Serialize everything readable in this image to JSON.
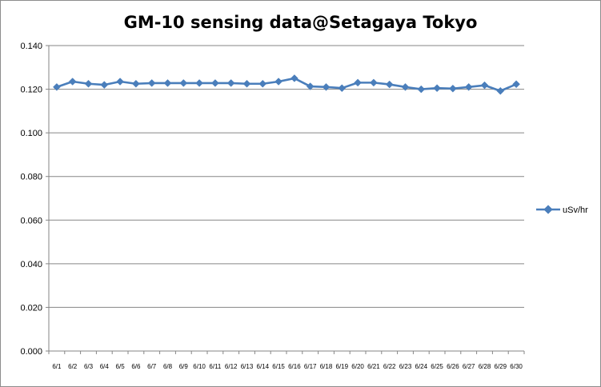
{
  "chart_data": {
    "type": "line",
    "title": "GM-10 sensing data@Setagaya Tokyo",
    "xlabel": "",
    "ylabel": "",
    "ylim": [
      0,
      0.14
    ],
    "yticks": [
      "0.000",
      "0.020",
      "0.040",
      "0.060",
      "0.080",
      "0.100",
      "0.120",
      "0.140"
    ],
    "grid": true,
    "legend_position": "right",
    "categories": [
      "6/1",
      "6/2",
      "6/3",
      "6/4",
      "6/5",
      "6/6",
      "6/7",
      "6/8",
      "6/9",
      "6/10",
      "6/11",
      "6/12",
      "6/13",
      "6/14",
      "6/15",
      "6/16",
      "6/17",
      "6/18",
      "6/19",
      "6/20",
      "6/21",
      "6/22",
      "6/23",
      "6/24",
      "6/25",
      "6/26",
      "6/27",
      "6/28",
      "6/29",
      "6/30"
    ],
    "series": [
      {
        "name": "uSv/hr",
        "color": "#4a7ebb",
        "values": [
          0.121,
          0.1235,
          0.1225,
          0.122,
          0.1235,
          0.1225,
          0.1228,
          0.1228,
          0.1228,
          0.1228,
          0.1228,
          0.1228,
          0.1225,
          0.1225,
          0.1235,
          0.125,
          0.1213,
          0.121,
          0.1205,
          0.123,
          0.123,
          0.1222,
          0.121,
          0.12,
          0.1205,
          0.1203,
          0.121,
          0.1218,
          0.1192,
          0.1223
        ]
      }
    ]
  }
}
